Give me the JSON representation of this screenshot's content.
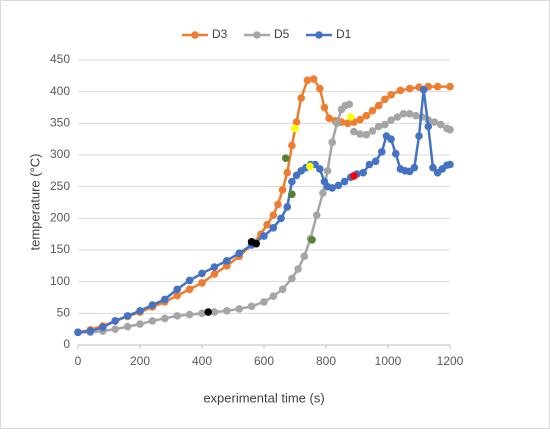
{
  "chart_data": {
    "type": "line",
    "x_label": "experimental time (s)",
    "y_label": "temperature (°C)",
    "xlim": [
      0,
      1200
    ],
    "xticks": [
      0,
      200,
      400,
      600,
      800,
      1000,
      1200
    ],
    "ylim": [
      0,
      450
    ],
    "yticks": [
      0,
      50,
      100,
      150,
      200,
      250,
      300,
      350,
      400,
      450
    ],
    "grid": true,
    "legend": "top",
    "series": [
      {
        "name": "D3",
        "color": "#ed7d31",
        "x": [
          0,
          40,
          80,
          120,
          160,
          200,
          240,
          280,
          320,
          360,
          400,
          440,
          480,
          520,
          560,
          590,
          610,
          630,
          645,
          660,
          675,
          690,
          705,
          720,
          740,
          760,
          780,
          795,
          810,
          830,
          850,
          870,
          890,
          910,
          930,
          950,
          970,
          990,
          1010,
          1040,
          1070,
          1100,
          1130,
          1160,
          1200
        ],
        "values": [
          20,
          24,
          30,
          38,
          45,
          52,
          60,
          68,
          78,
          88,
          98,
          112,
          125,
          140,
          158,
          175,
          190,
          205,
          222,
          245,
          272,
          315,
          352,
          390,
          418,
          420,
          405,
          375,
          358,
          354,
          352,
          350,
          352,
          356,
          362,
          370,
          378,
          388,
          395,
          402,
          405,
          407,
          408,
          408,
          408
        ]
      },
      {
        "name": "D5",
        "color": "#a5a5a5",
        "x": [
          0,
          40,
          80,
          120,
          160,
          200,
          240,
          280,
          320,
          360,
          400,
          440,
          480,
          520,
          560,
          600,
          630,
          660,
          690,
          710,
          730,
          750,
          770,
          790,
          805,
          820,
          835,
          850,
          862,
          875,
          null,
          890,
          910,
          930,
          950,
          970,
          990,
          1010,
          1030,
          1050,
          1070,
          1090,
          1110,
          1130,
          1150,
          1170,
          1190,
          1200
        ],
        "values": [
          20,
          20,
          22,
          25,
          29,
          33,
          38,
          42,
          46,
          48,
          50,
          52,
          54,
          57,
          61,
          68,
          77,
          88,
          105,
          120,
          140,
          168,
          205,
          240,
          275,
          320,
          350,
          372,
          378,
          380,
          null,
          337,
          333,
          332,
          338,
          345,
          348,
          355,
          360,
          365,
          365,
          362,
          360,
          355,
          352,
          348,
          342,
          340
        ]
      },
      {
        "name": "D1",
        "color": "#4472c4",
        "x": [
          0,
          40,
          80,
          120,
          160,
          200,
          240,
          280,
          320,
          360,
          400,
          440,
          480,
          520,
          560,
          600,
          630,
          655,
          675,
          690,
          705,
          720,
          735,
          750,
          765,
          780,
          795,
          805,
          820,
          840,
          860,
          880,
          900,
          920,
          940,
          960,
          980,
          995,
          1010,
          1025,
          1040,
          1055,
          1070,
          1085,
          1100,
          1115,
          1130,
          1145,
          1160,
          1175,
          1190,
          1200
        ],
        "values": [
          20,
          22,
          28,
          38,
          46,
          54,
          63,
          72,
          88,
          102,
          113,
          123,
          133,
          145,
          158,
          172,
          185,
          200,
          218,
          258,
          268,
          275,
          280,
          285,
          285,
          278,
          258,
          250,
          248,
          252,
          258,
          265,
          270,
          272,
          285,
          290,
          305,
          330,
          325,
          302,
          278,
          275,
          274,
          280,
          330,
          403,
          345,
          280,
          272,
          278,
          284,
          285
        ]
      }
    ],
    "highlights": [
      {
        "x": 420,
        "y": 52,
        "color": "#000000"
      },
      {
        "x": 560,
        "y": 163,
        "color": "#000000"
      },
      {
        "x": 575,
        "y": 160,
        "color": "#000000"
      },
      {
        "x": 670,
        "y": 295,
        "color": "#548235"
      },
      {
        "x": 690,
        "y": 238,
        "color": "#548235"
      },
      {
        "x": 755,
        "y": 166,
        "color": "#548235"
      },
      {
        "x": 700,
        "y": 342,
        "color": "#ffff00"
      },
      {
        "x": 748,
        "y": 282,
        "color": "#ffff00"
      },
      {
        "x": 880,
        "y": 360,
        "color": "#ffff00"
      },
      {
        "x": 890,
        "y": 267,
        "color": "#ff0000"
      }
    ]
  }
}
